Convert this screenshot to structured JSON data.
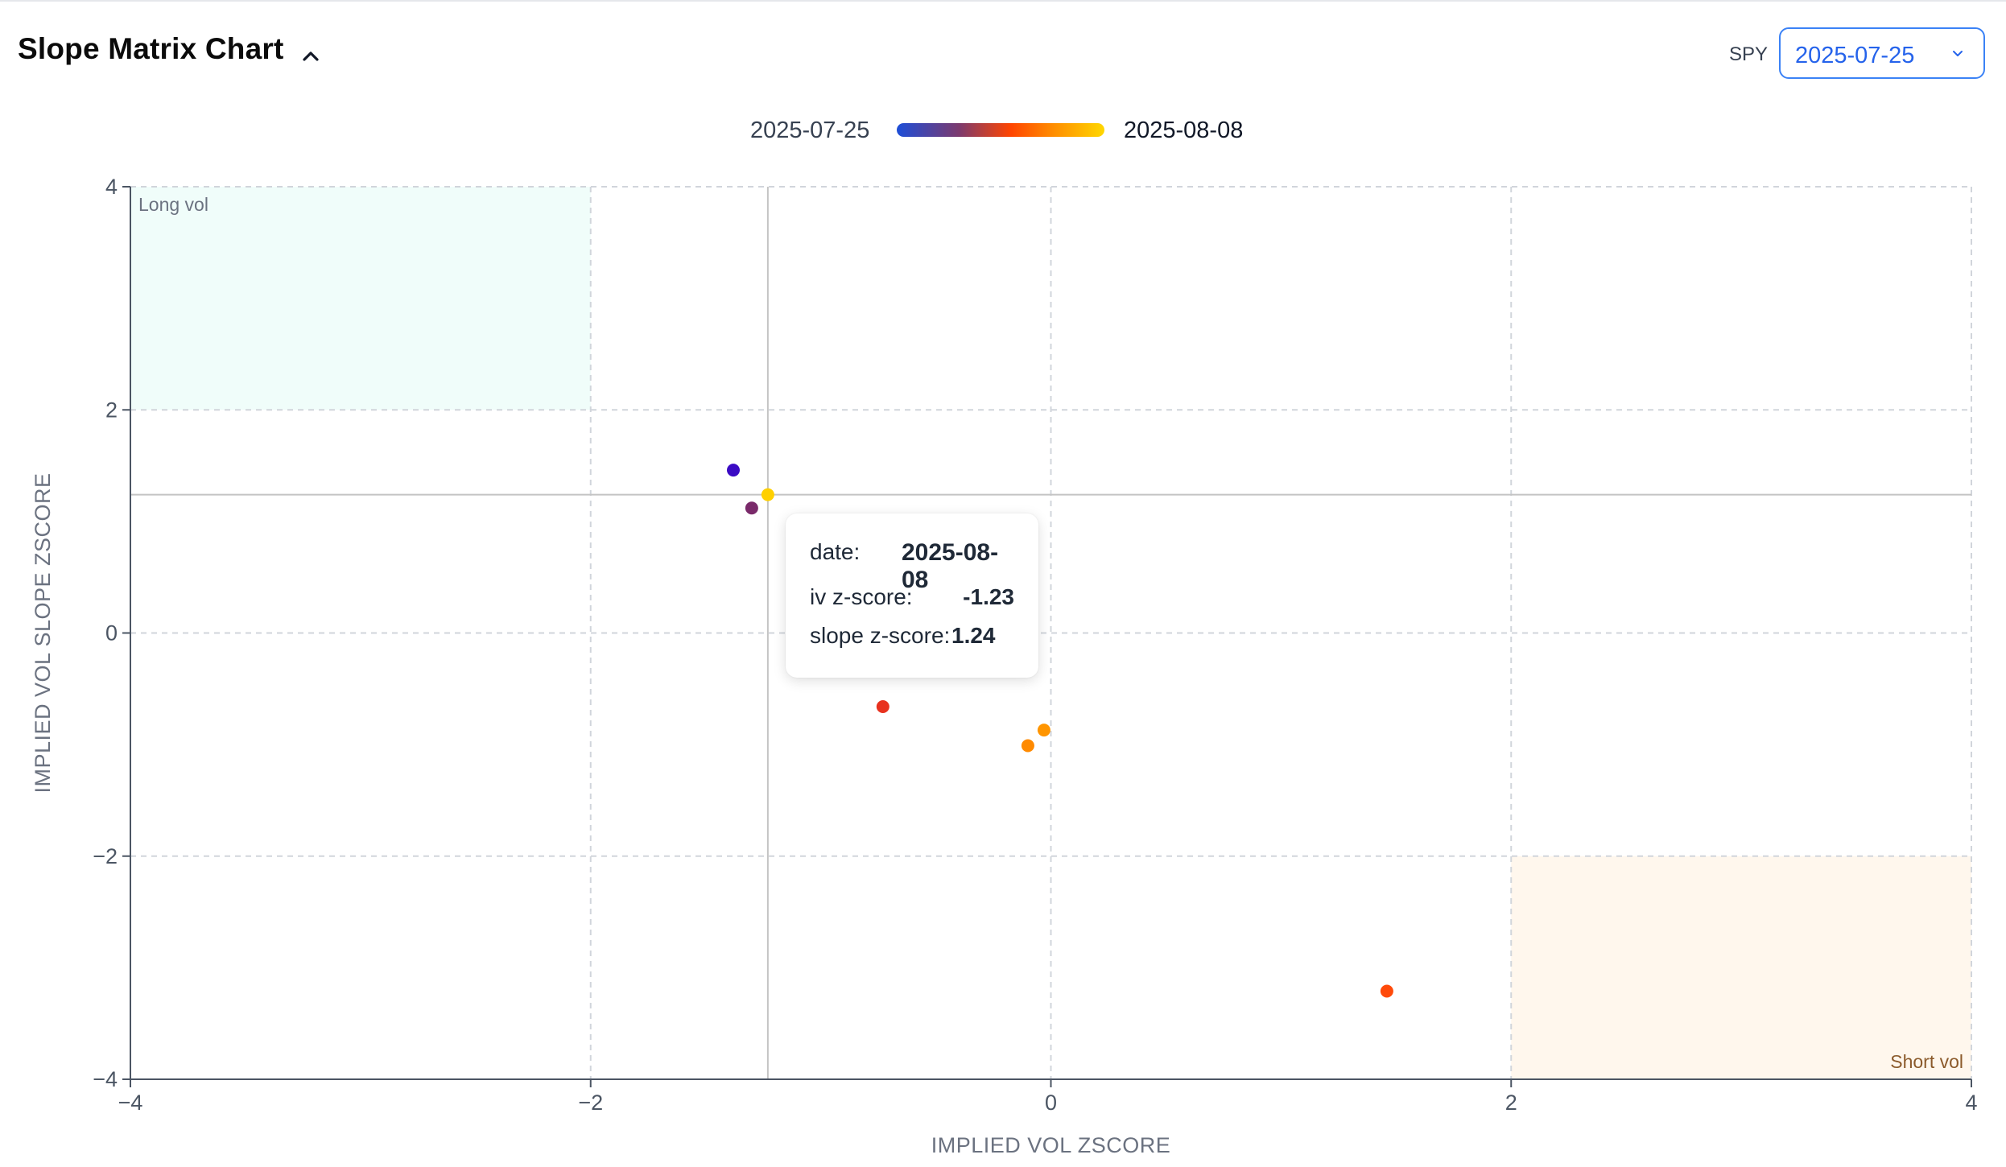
{
  "header": {
    "title": "Slope Matrix Chart"
  },
  "controls": {
    "ticker": "SPY",
    "selected_date": "2025-07-25"
  },
  "legend": {
    "start_label": "2025-07-25",
    "end_label": "2025-08-08",
    "gradient_colors": [
      "#1d4ed8",
      "#7c3a6e",
      "#ff4500",
      "#ff8c00",
      "#ffd700"
    ]
  },
  "zones": {
    "long_vol": {
      "label": "Long vol",
      "x_range": [
        -4,
        -2
      ],
      "y_range": [
        2,
        4
      ],
      "color": "#f0fdfa",
      "text_color": "#6b7280"
    },
    "short_vol": {
      "label": "Short vol",
      "x_range": [
        2,
        4
      ],
      "y_range": [
        -4,
        -2
      ],
      "color": "#fff7ed",
      "text_color": "#8b5a2b"
    }
  },
  "tooltip": {
    "date_label": "date:",
    "date_value": "2025-08-08",
    "iv_label": "iv z-score:",
    "iv_value": "-1.23",
    "slope_label": "slope z-score:",
    "slope_value": "1.24"
  },
  "chart_data": {
    "type": "scatter",
    "title": "",
    "xlabel": "IMPLIED VOL ZSCORE",
    "ylabel": "IMPLIED VOL SLOPE ZSCORE",
    "xlim": [
      -4,
      4
    ],
    "ylim": [
      -4,
      4
    ],
    "x_ticks": [
      -4,
      -2,
      0,
      2,
      4
    ],
    "y_ticks": [
      -4,
      -2,
      0,
      2,
      4
    ],
    "x_tick_labels": [
      "−4",
      "−2",
      "0",
      "2",
      "4"
    ],
    "y_tick_labels": [
      "−4",
      "−2",
      "0",
      "2",
      "4"
    ],
    "grid": true,
    "points": [
      {
        "x": -1.38,
        "y": 1.46,
        "color": "#3b0bc4"
      },
      {
        "x": -1.3,
        "y": 1.12,
        "color": "#7a2a6a"
      },
      {
        "x": -0.73,
        "y": -0.66,
        "color": "#e8321f"
      },
      {
        "x": 1.46,
        "y": -3.21,
        "color": "#ff4a0a"
      },
      {
        "x": -0.1,
        "y": -1.01,
        "color": "#ff8a00"
      },
      {
        "x": -0.03,
        "y": -0.87,
        "color": "#ff9500"
      },
      {
        "x": -1.23,
        "y": 1.24,
        "color": "#ffd000"
      }
    ],
    "highlight": {
      "x": -1.23,
      "y": 1.24
    }
  }
}
